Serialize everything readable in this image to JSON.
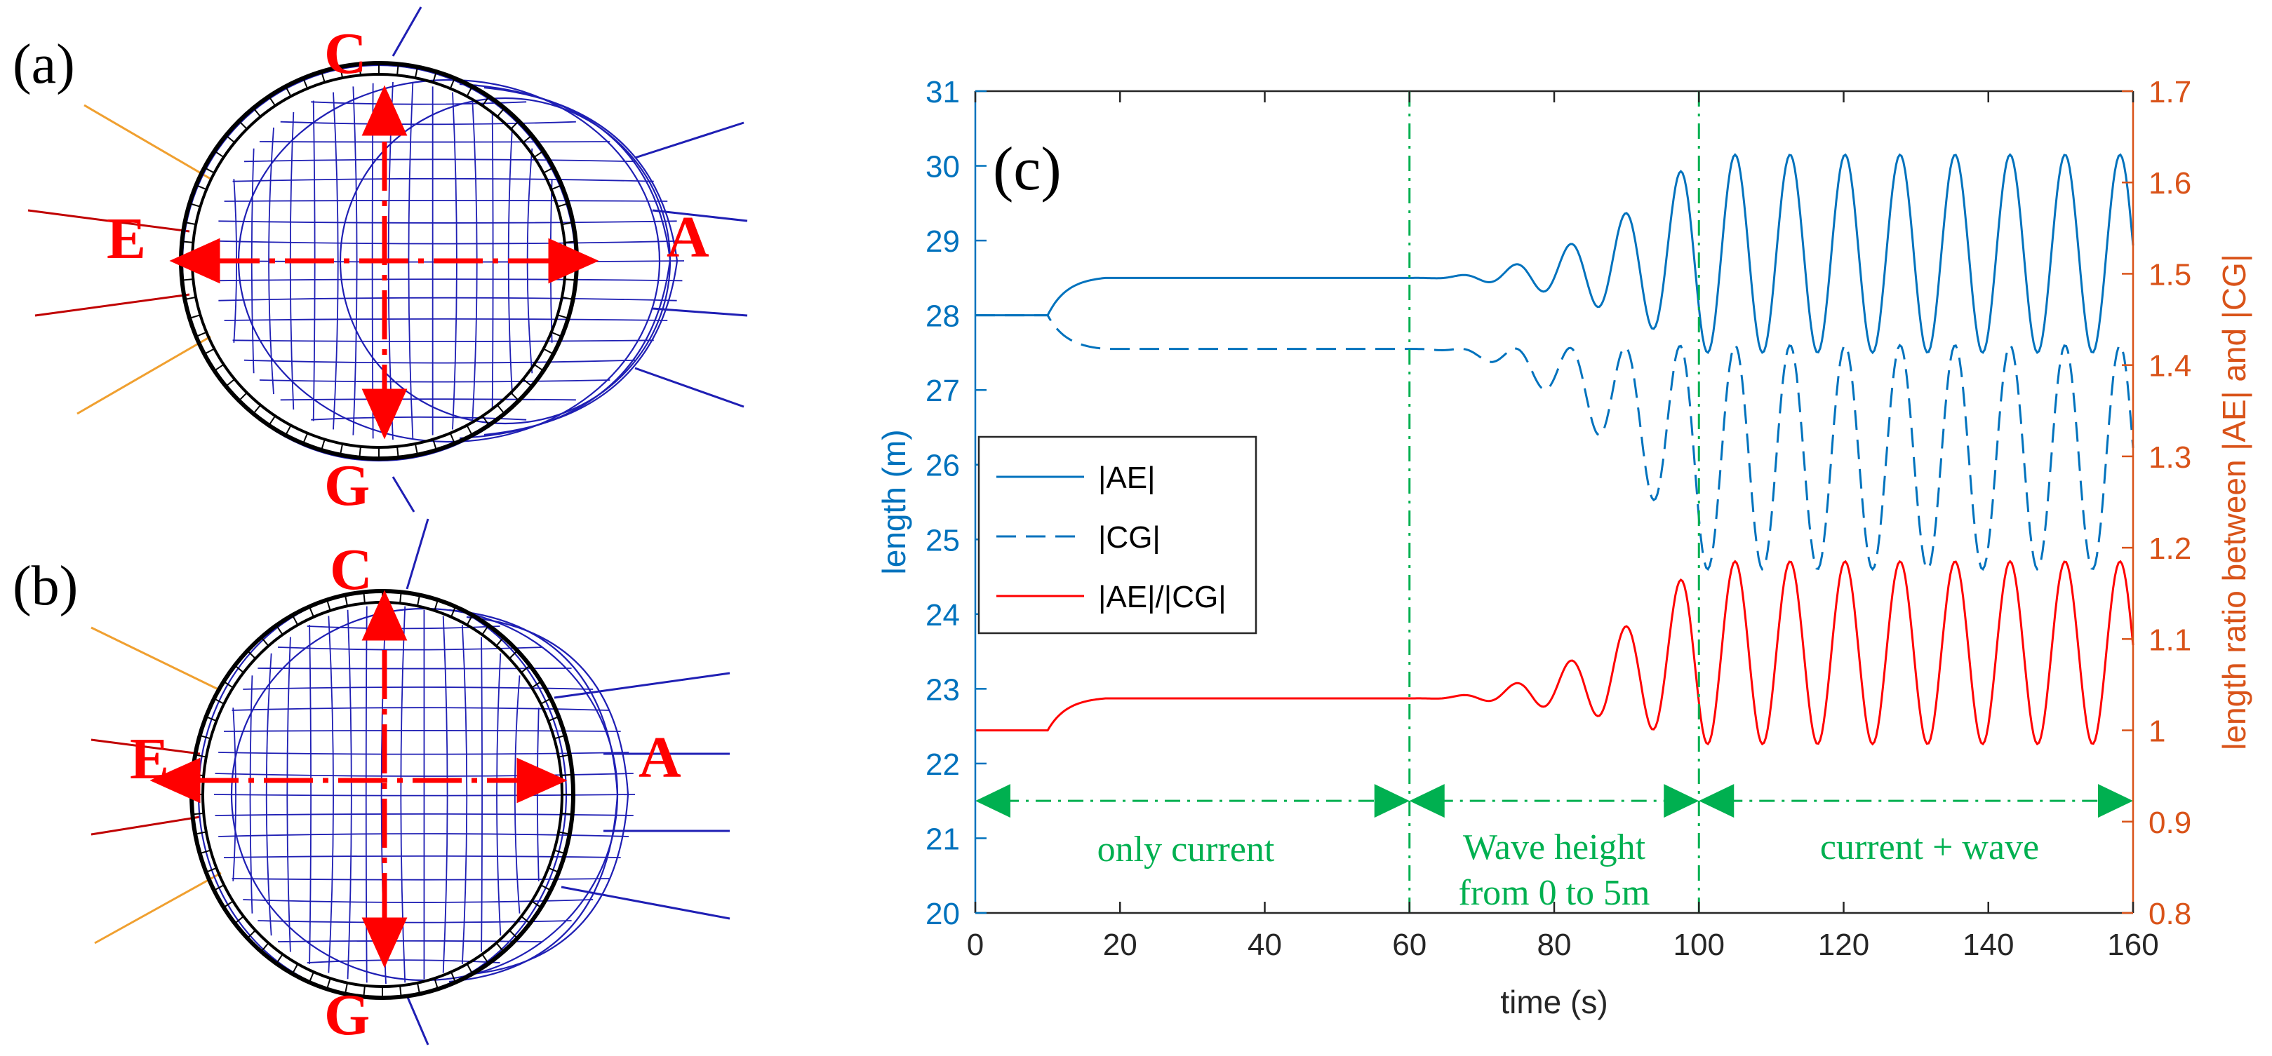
{
  "panels": {
    "a": {
      "label": "(a)",
      "points": {
        "A": "A",
        "C": "C",
        "E": "E",
        "G": "G"
      }
    },
    "b": {
      "label": "(b)",
      "points": {
        "A": "A",
        "C": "C",
        "E": "E",
        "G": "G"
      }
    }
  },
  "colors": {
    "left_axis": "#0072bd",
    "right_axis": "#d95319",
    "series_ratio": "#ff0000",
    "annotation": "#00b050",
    "net": "#1f1fb4",
    "markers": "#ff0000"
  },
  "chart_data": {
    "type": "line",
    "panel_label": "(c)",
    "xlabel": "time (s)",
    "ylabel_left": "length (m)",
    "ylabel_right": "length ratio between |AE| and |CG|",
    "xlim": [
      0,
      160
    ],
    "ylim_left": [
      20,
      31
    ],
    "ylim_right": [
      0.8,
      1.7
    ],
    "xticks": [
      "0",
      "20",
      "40",
      "60",
      "80",
      "100",
      "120",
      "140",
      "160"
    ],
    "yticks_left": [
      "20",
      "21",
      "22",
      "23",
      "24",
      "25",
      "26",
      "27",
      "28",
      "29",
      "30",
      "31"
    ],
    "yticks_right": [
      "0.8",
      "0.9",
      "1",
      "1.1",
      "1.2",
      "1.3",
      "1.4",
      "1.5",
      "1.6",
      "1.7"
    ],
    "series": [
      {
        "name": "|AE|",
        "axis": "left",
        "style": "solid",
        "initial": 28.0,
        "current_steady": 28.5,
        "wave_mean": 28.6,
        "wave_max": 30.15,
        "wave_min": 27.5
      },
      {
        "name": "|CG|",
        "axis": "left",
        "style": "dashed",
        "initial": 28.0,
        "current_steady": 27.55,
        "wave_mean": 25.8,
        "wave_max": 27.6,
        "wave_min": 24.6
      },
      {
        "name": "|AE|/|CG|",
        "axis": "right",
        "style": "solid",
        "initial": 1.0,
        "current_steady": 1.035,
        "wave_max": 1.185,
        "wave_min": 0.985
      }
    ],
    "wave_period_s": 7.6,
    "phase_lines_x": [
      60,
      100
    ],
    "annotations": [
      {
        "text": "only current",
        "x_start": 0,
        "x_end": 60
      },
      {
        "text": "Wave height",
        "text2": "from 0 to 5m",
        "x_start": 60,
        "x_end": 100
      },
      {
        "text": "current + wave",
        "x_start": 100,
        "x_end": 160
      }
    ]
  }
}
